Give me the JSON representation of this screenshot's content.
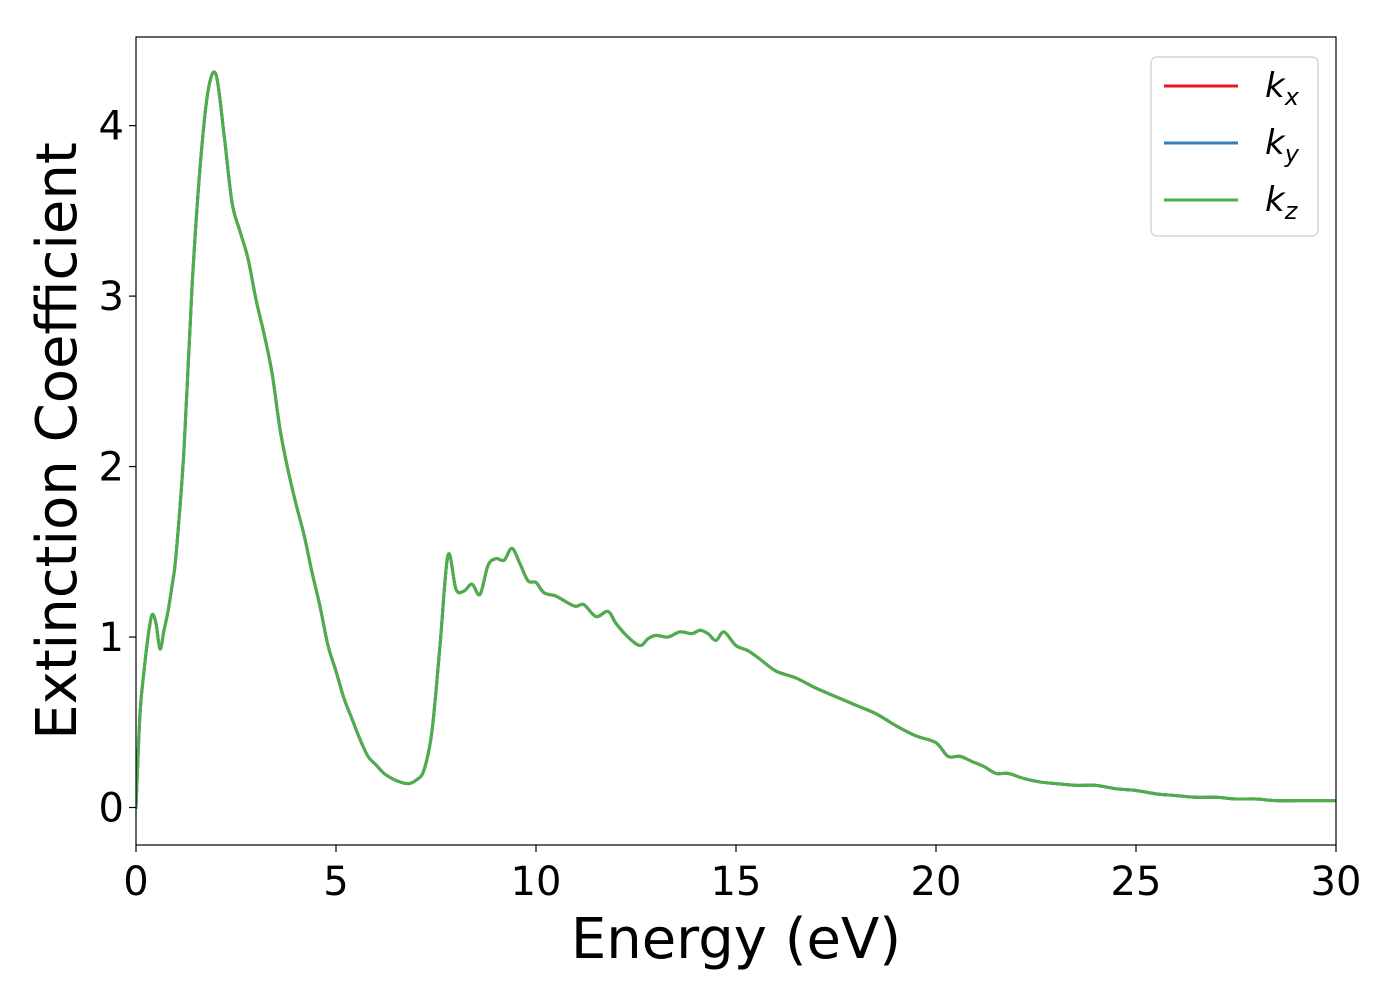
{
  "chart_data": {
    "type": "line",
    "title": "",
    "xlabel": "Energy (eV)",
    "ylabel": "Extinction Coefficient",
    "xlim": [
      0,
      30
    ],
    "ylim": [
      -0.22,
      4.52
    ],
    "xticks": [
      0,
      5,
      10,
      15,
      20,
      25,
      30
    ],
    "yticks": [
      0,
      1,
      2,
      3,
      4
    ],
    "grid": false,
    "legend_position": "top-right",
    "x": [
      0,
      0.1,
      0.2,
      0.3,
      0.4,
      0.5,
      0.6,
      0.7,
      0.8,
      0.9,
      1.0,
      1.2,
      1.4,
      1.6,
      1.8,
      2.0,
      2.2,
      2.4,
      2.6,
      2.8,
      3.0,
      3.2,
      3.4,
      3.6,
      3.8,
      4.0,
      4.2,
      4.4,
      4.6,
      4.8,
      5.0,
      5.2,
      5.4,
      5.6,
      5.8,
      6.0,
      6.2,
      6.4,
      6.6,
      6.8,
      7.0,
      7.2,
      7.4,
      7.6,
      7.8,
      8.0,
      8.2,
      8.4,
      8.6,
      8.8,
      9.0,
      9.2,
      9.4,
      9.6,
      9.8,
      10.0,
      10.2,
      10.5,
      10.8,
      11.0,
      11.2,
      11.5,
      11.8,
      12.0,
      12.3,
      12.6,
      12.8,
      13.0,
      13.3,
      13.6,
      13.9,
      14.1,
      14.3,
      14.5,
      14.7,
      15.0,
      15.3,
      15.6,
      16.0,
      16.5,
      17.0,
      17.5,
      18.0,
      18.5,
      19.0,
      19.5,
      20.0,
      20.3,
      20.6,
      20.9,
      21.2,
      21.5,
      21.8,
      22.2,
      22.6,
      23.0,
      23.5,
      24.0,
      24.5,
      25.0,
      25.5,
      26.0,
      26.5,
      27.0,
      27.5,
      28.0,
      28.5,
      29.0,
      29.5,
      30.0
    ],
    "series": [
      {
        "name": "k_x",
        "color": "#e41a1c",
        "values": [
          0.0,
          0.55,
          0.8,
          1.0,
          1.13,
          1.08,
          0.93,
          1.04,
          1.15,
          1.3,
          1.48,
          2.1,
          3.05,
          3.75,
          4.2,
          4.3,
          3.95,
          3.55,
          3.38,
          3.22,
          2.98,
          2.78,
          2.55,
          2.22,
          1.98,
          1.78,
          1.6,
          1.38,
          1.18,
          0.95,
          0.8,
          0.64,
          0.52,
          0.4,
          0.3,
          0.25,
          0.2,
          0.17,
          0.15,
          0.14,
          0.16,
          0.22,
          0.45,
          0.95,
          1.48,
          1.28,
          1.27,
          1.31,
          1.25,
          1.42,
          1.46,
          1.45,
          1.52,
          1.43,
          1.33,
          1.32,
          1.26,
          1.24,
          1.2,
          1.18,
          1.19,
          1.12,
          1.15,
          1.08,
          1.0,
          0.95,
          0.99,
          1.01,
          1.0,
          1.03,
          1.02,
          1.04,
          1.02,
          0.98,
          1.03,
          0.95,
          0.92,
          0.87,
          0.8,
          0.76,
          0.7,
          0.65,
          0.6,
          0.55,
          0.48,
          0.42,
          0.38,
          0.3,
          0.3,
          0.27,
          0.24,
          0.2,
          0.2,
          0.17,
          0.15,
          0.14,
          0.13,
          0.13,
          0.11,
          0.1,
          0.08,
          0.07,
          0.06,
          0.06,
          0.05,
          0.05,
          0.04,
          0.04,
          0.04,
          0.04
        ]
      },
      {
        "name": "k_y",
        "color": "#377eb8",
        "values": [
          0.0,
          0.55,
          0.8,
          1.0,
          1.13,
          1.08,
          0.93,
          1.04,
          1.15,
          1.3,
          1.48,
          2.1,
          3.05,
          3.75,
          4.2,
          4.3,
          3.95,
          3.55,
          3.38,
          3.22,
          2.98,
          2.78,
          2.55,
          2.22,
          1.98,
          1.78,
          1.6,
          1.38,
          1.18,
          0.95,
          0.8,
          0.64,
          0.52,
          0.4,
          0.3,
          0.25,
          0.2,
          0.17,
          0.15,
          0.14,
          0.16,
          0.22,
          0.45,
          0.95,
          1.48,
          1.28,
          1.27,
          1.31,
          1.25,
          1.42,
          1.46,
          1.45,
          1.52,
          1.43,
          1.33,
          1.32,
          1.26,
          1.24,
          1.2,
          1.18,
          1.19,
          1.12,
          1.15,
          1.08,
          1.0,
          0.95,
          0.99,
          1.01,
          1.0,
          1.03,
          1.02,
          1.04,
          1.02,
          0.98,
          1.03,
          0.95,
          0.92,
          0.87,
          0.8,
          0.76,
          0.7,
          0.65,
          0.6,
          0.55,
          0.48,
          0.42,
          0.38,
          0.3,
          0.3,
          0.27,
          0.24,
          0.2,
          0.2,
          0.17,
          0.15,
          0.14,
          0.13,
          0.13,
          0.11,
          0.1,
          0.08,
          0.07,
          0.06,
          0.06,
          0.05,
          0.05,
          0.04,
          0.04,
          0.04,
          0.04
        ]
      },
      {
        "name": "k_z",
        "color": "#4daf4a",
        "values": [
          0.0,
          0.55,
          0.8,
          1.0,
          1.13,
          1.08,
          0.93,
          1.04,
          1.15,
          1.3,
          1.48,
          2.1,
          3.05,
          3.75,
          4.2,
          4.3,
          3.95,
          3.55,
          3.38,
          3.22,
          2.98,
          2.78,
          2.55,
          2.22,
          1.98,
          1.78,
          1.6,
          1.38,
          1.18,
          0.95,
          0.8,
          0.64,
          0.52,
          0.4,
          0.3,
          0.25,
          0.2,
          0.17,
          0.15,
          0.14,
          0.16,
          0.22,
          0.45,
          0.95,
          1.48,
          1.28,
          1.27,
          1.31,
          1.25,
          1.42,
          1.46,
          1.45,
          1.52,
          1.43,
          1.33,
          1.32,
          1.26,
          1.24,
          1.2,
          1.18,
          1.19,
          1.12,
          1.15,
          1.08,
          1.0,
          0.95,
          0.99,
          1.01,
          1.0,
          1.03,
          1.02,
          1.04,
          1.02,
          0.98,
          1.03,
          0.95,
          0.92,
          0.87,
          0.8,
          0.76,
          0.7,
          0.65,
          0.6,
          0.55,
          0.48,
          0.42,
          0.38,
          0.3,
          0.3,
          0.27,
          0.24,
          0.2,
          0.2,
          0.17,
          0.15,
          0.14,
          0.13,
          0.13,
          0.11,
          0.1,
          0.08,
          0.07,
          0.06,
          0.06,
          0.05,
          0.05,
          0.04,
          0.04,
          0.04,
          0.04
        ]
      }
    ],
    "legend": [
      {
        "base": "k",
        "sub": "x",
        "color": "#e41a1c"
      },
      {
        "base": "k",
        "sub": "y",
        "color": "#377eb8"
      },
      {
        "base": "k",
        "sub": "z",
        "color": "#4daf4a"
      }
    ]
  }
}
